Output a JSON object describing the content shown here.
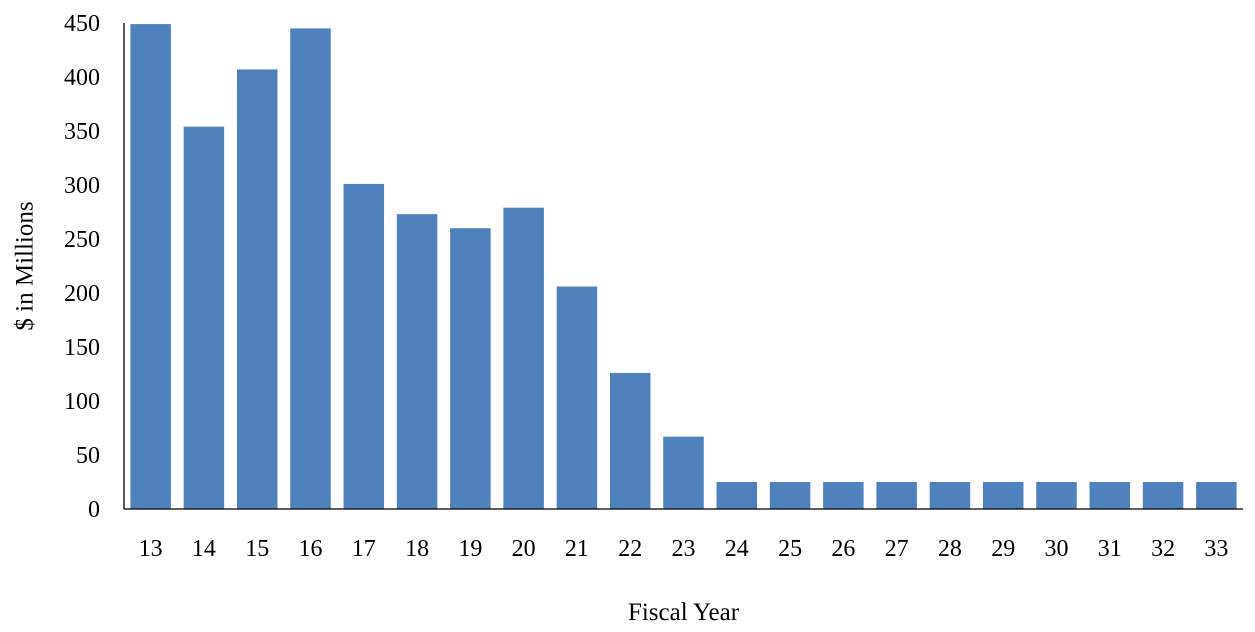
{
  "chart_data": {
    "type": "bar",
    "title": "",
    "xlabel": "Fiscal Year",
    "ylabel": "$ in Millions",
    "categories": [
      "13",
      "14",
      "15",
      "16",
      "17",
      "18",
      "19",
      "20",
      "21",
      "22",
      "23",
      "24",
      "25",
      "26",
      "27",
      "28",
      "29",
      "30",
      "31",
      "32",
      "33"
    ],
    "values": [
      449,
      354,
      407,
      445,
      301,
      273,
      260,
      279,
      206,
      126,
      67,
      25,
      25,
      25,
      25,
      25,
      25,
      25,
      25,
      25,
      25
    ],
    "ylim": [
      0,
      450
    ],
    "yticks": [
      "0",
      "50",
      "100",
      "150",
      "200",
      "250",
      "300",
      "350",
      "400",
      "450"
    ],
    "grid": false,
    "legend": "none",
    "bar_color": "#4f81bd"
  }
}
